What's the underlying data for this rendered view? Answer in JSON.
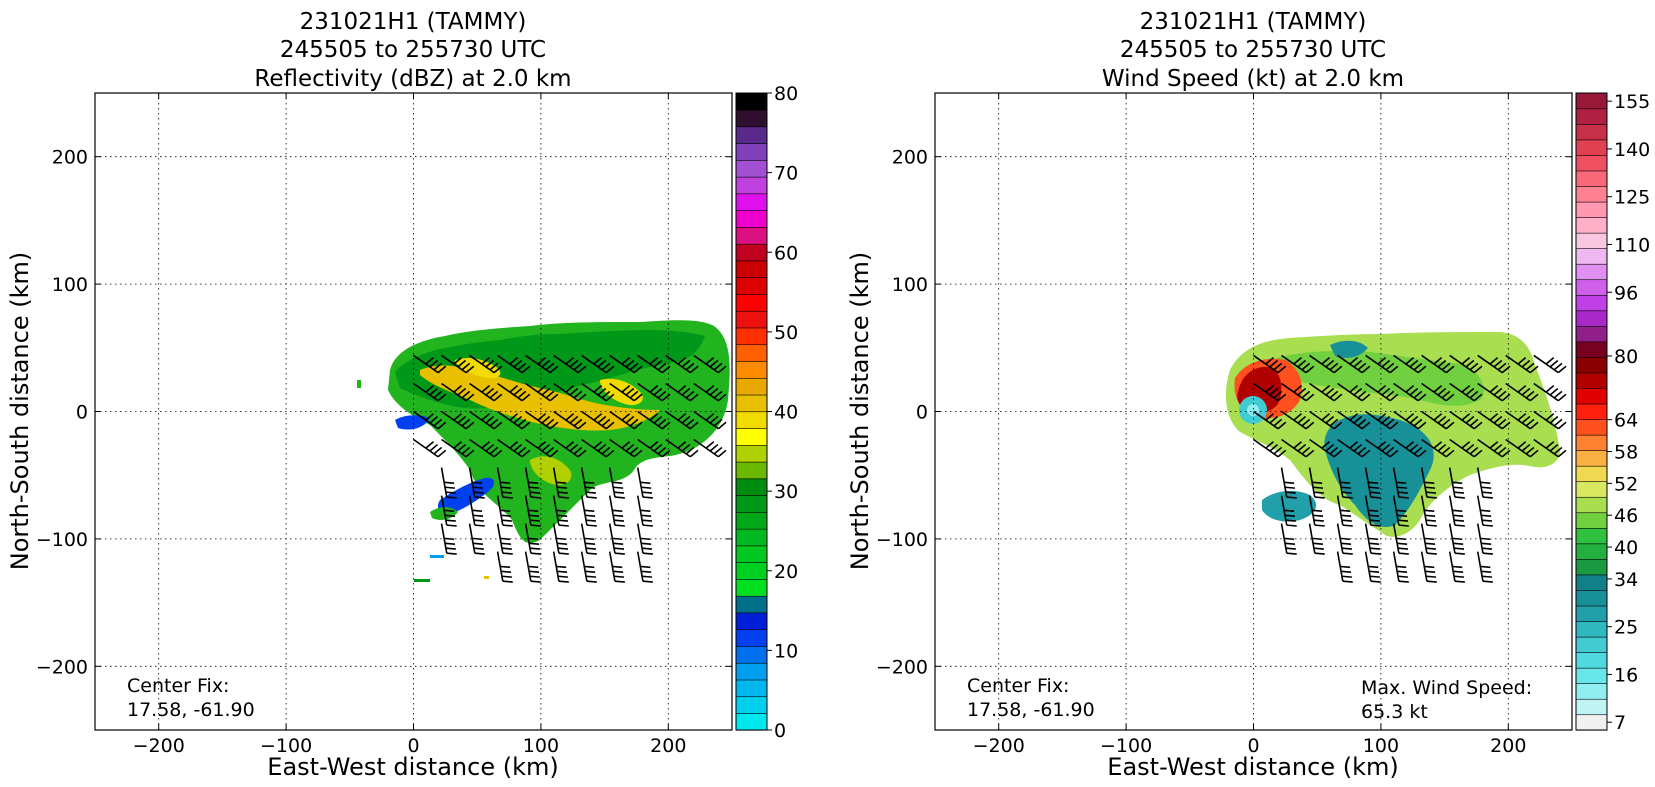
{
  "chart_data": [
    {
      "type": "heatmap",
      "title_lines": [
        "231021H1 (TAMMY)",
        "245505 to 255730 UTC",
        "Reflectivity (dBZ) at 2.0 km"
      ],
      "xlabel": "East-West distance (km)",
      "ylabel": "North-South distance (km)",
      "xlim": [
        -250,
        250
      ],
      "ylim": [
        -250,
        250
      ],
      "x_ticks": [
        -200,
        -100,
        0,
        100,
        200
      ],
      "y_ticks": [
        200,
        100,
        0,
        -100,
        -200
      ],
      "grid": true,
      "annotations": [
        {
          "text": "Center Fix:",
          "x": -225,
          "y": -215
        },
        {
          "text": "17.58, -61.90",
          "x": -225,
          "y": -234
        }
      ],
      "colorbar": {
        "levels": [
          0,
          2.5,
          5,
          7.5,
          10,
          12.5,
          15,
          17.5,
          20,
          22.5,
          25,
          27.5,
          30,
          32.5,
          35,
          37.5,
          40,
          42.5,
          45,
          47.5,
          50,
          52.5,
          55,
          57.5,
          60,
          62.5,
          65,
          67.5,
          70,
          72.5,
          75,
          77.5,
          80
        ],
        "colors": [
          "#00e8ee",
          "#00d0ee",
          "#00b8ee",
          "#00a0ee",
          "#0070ee",
          "#0040ee",
          "#0020d8",
          "#00708a",
          "#00e020",
          "#00d020",
          "#00c820",
          "#00b820",
          "#00a818",
          "#009818",
          "#008c10",
          "#6cb800",
          "#b0d000",
          "#ffff00",
          "#f2dc00",
          "#e8c000",
          "#e8a800",
          "#ff8c00",
          "#ff6000",
          "#ff3000",
          "#ee1010",
          "#ff0000",
          "#dd0000",
          "#cc0000",
          "#c00020",
          "#dd1080",
          "#ee00cc",
          "#e010ee",
          "#c040e0",
          "#a050d0",
          "#8040b8",
          "#5a2a8a",
          "#301030",
          "#000000"
        ],
        "tick_labels": [
          "0",
          "10",
          "20",
          "30",
          "40",
          "50",
          "60",
          "70",
          "80"
        ],
        "tick_values": [
          0,
          10,
          20,
          30,
          40,
          50,
          60,
          70,
          80
        ]
      }
    },
    {
      "type": "heatmap",
      "title_lines": [
        "231021H1 (TAMMY)",
        "245505 to 255730 UTC",
        "Wind Speed (kt) at 2.0 km"
      ],
      "xlabel": "East-West distance (km)",
      "ylabel": "North-South distance (km)",
      "xlim": [
        -250,
        250
      ],
      "ylim": [
        -250,
        250
      ],
      "x_ticks": [
        -200,
        -100,
        0,
        100,
        200
      ],
      "y_ticks": [
        200,
        100,
        0,
        -100,
        -200
      ],
      "grid": true,
      "annotations": [
        {
          "text": "Center Fix:",
          "x": -225,
          "y": -215
        },
        {
          "text": "17.58, -61.90",
          "x": -225,
          "y": -234
        },
        {
          "text": "Max. Wind Speed:",
          "x": 85,
          "y": -217
        },
        {
          "text": "65.3 kt",
          "x": 85,
          "y": -236
        }
      ],
      "colorbar": {
        "levels": [
          7,
          10,
          13,
          16,
          19,
          22,
          25,
          28,
          31,
          34,
          37,
          40,
          43,
          46,
          49,
          52,
          55,
          58,
          61,
          64,
          67,
          72,
          76,
          80,
          84,
          88,
          92,
          96,
          100,
          105,
          110,
          115,
          120,
          125,
          130,
          135,
          140,
          145,
          150,
          155,
          160
        ],
        "colors": [
          "#f0f0f0",
          "#c0f4f4",
          "#90eef0",
          "#68e6ea",
          "#50dadf",
          "#40ccd2",
          "#30b8c0",
          "#22a0aa",
          "#189098",
          "#118088",
          "#1a9a40",
          "#22b040",
          "#30c040",
          "#70d040",
          "#a8de50",
          "#d8e860",
          "#f0d850",
          "#f8b040",
          "#ff8030",
          "#ff5020",
          "#ff2010",
          "#e00000",
          "#b00000",
          "#8a0000",
          "#780020",
          "#902088",
          "#a828c8",
          "#c040e8",
          "#d060ec",
          "#e090f0",
          "#f0b8f0",
          "#f8c8e0",
          "#ffb0c8",
          "#ff98b0",
          "#ff8090",
          "#f86878",
          "#ee5060",
          "#e04050",
          "#c83048",
          "#b02040",
          "#981838"
        ],
        "tick_labels": [
          "7",
          "16",
          "25",
          "34",
          "40",
          "46",
          "52",
          "58",
          "64",
          "80",
          "96",
          "110",
          "125",
          "140",
          "155"
        ],
        "tick_values": [
          7,
          16,
          25,
          34,
          40,
          46,
          52,
          58,
          64,
          80,
          96,
          110,
          125,
          140,
          155
        ]
      }
    }
  ]
}
